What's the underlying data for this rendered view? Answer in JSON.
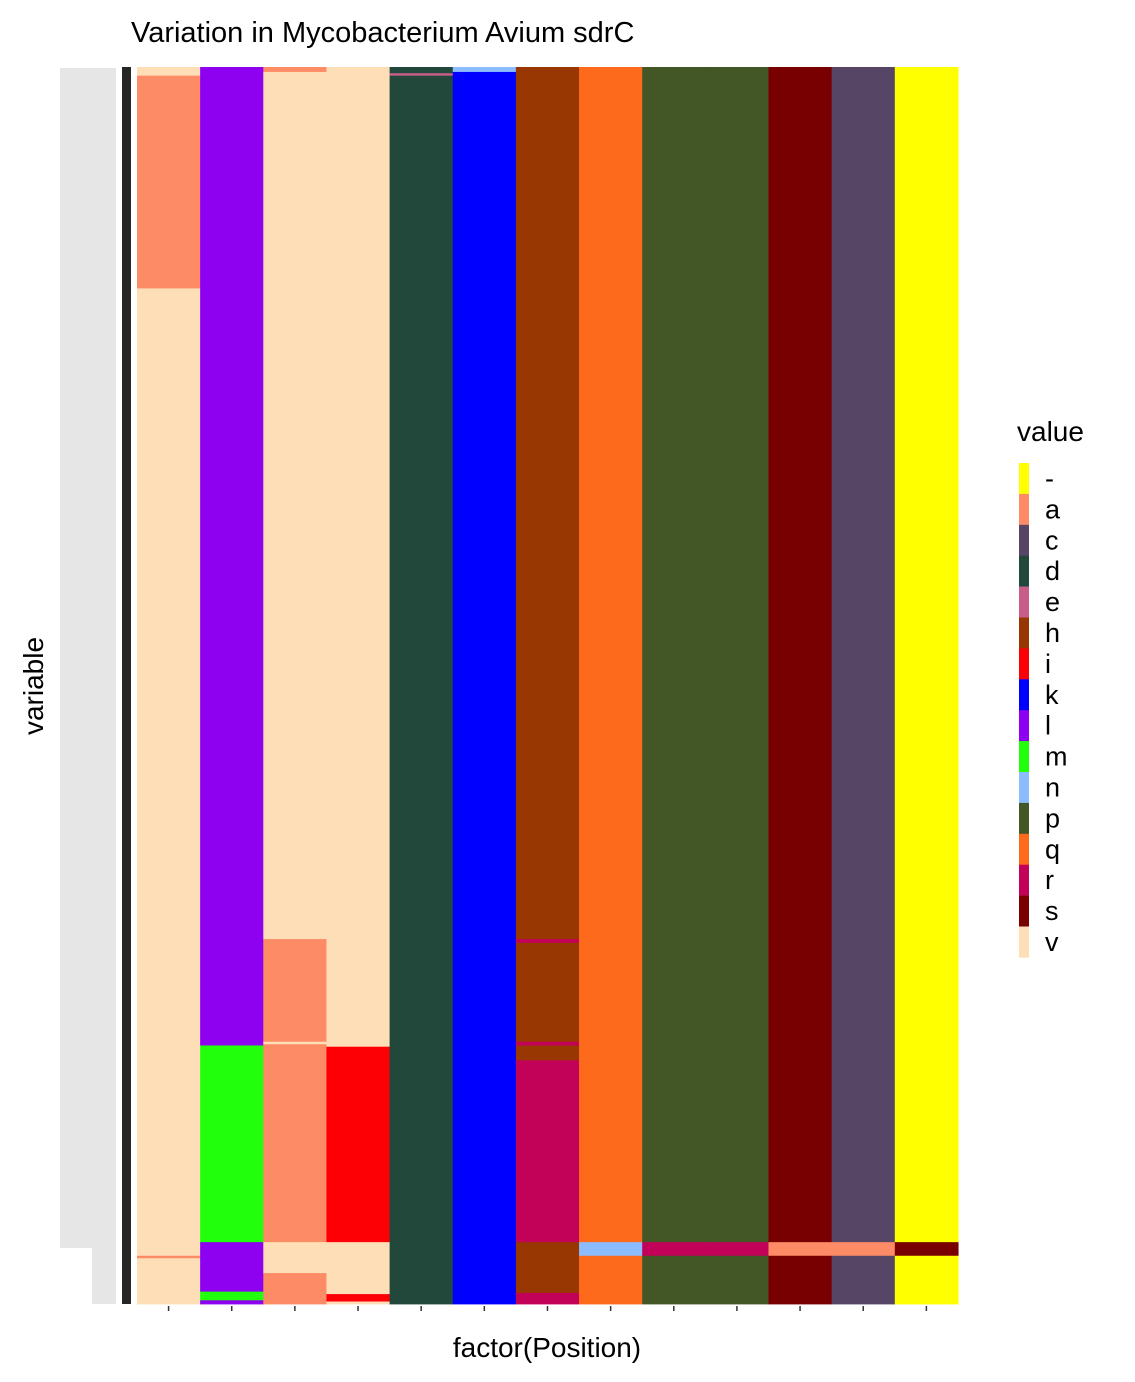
{
  "chart_data": {
    "type": "heatmap",
    "title": "Variation in Mycobacterium Avium sdrC",
    "xlabel": "factor(Position)",
    "ylabel": "variable",
    "legend": {
      "title": "value",
      "placement": "right",
      "entries": [
        {
          "label": "-",
          "color": "#ffff00"
        },
        {
          "label": "a",
          "color": "#fd8c66"
        },
        {
          "label": "c",
          "color": "#574565"
        },
        {
          "label": "d",
          "color": "#22483c"
        },
        {
          "label": "e",
          "color": "#c75d88"
        },
        {
          "label": "h",
          "color": "#983702"
        },
        {
          "label": "i",
          "color": "#fd0005"
        },
        {
          "label": "k",
          "color": "#0000ff"
        },
        {
          "label": "l",
          "color": "#8d00f0"
        },
        {
          "label": "m",
          "color": "#21ff0c"
        },
        {
          "label": "n",
          "color": "#8bbcff"
        },
        {
          "label": "p",
          "color": "#435625"
        },
        {
          "label": "q",
          "color": "#fe6a1c"
        },
        {
          "label": "r",
          "color": "#c20259"
        },
        {
          "label": "s",
          "color": "#790000"
        },
        {
          "label": "v",
          "color": "#fedeb7"
        }
      ]
    },
    "rows": 1000,
    "columns": 13,
    "blocks": [
      {
        "col": 0,
        "from": 0,
        "to": 7,
        "value": "v"
      },
      {
        "col": 0,
        "from": 7,
        "to": 179,
        "value": "a"
      },
      {
        "col": 0,
        "from": 179,
        "to": 961,
        "value": "v"
      },
      {
        "col": 0,
        "from": 961,
        "to": 963,
        "value": "a"
      },
      {
        "col": 0,
        "from": 963,
        "to": 1000,
        "value": "v"
      },
      {
        "col": 1,
        "from": 0,
        "to": 791,
        "value": "l"
      },
      {
        "col": 1,
        "from": 791,
        "to": 950,
        "value": "m"
      },
      {
        "col": 1,
        "from": 950,
        "to": 990,
        "value": "l"
      },
      {
        "col": 1,
        "from": 990,
        "to": 997,
        "value": "m"
      },
      {
        "col": 1,
        "from": 997,
        "to": 1000,
        "value": "l"
      },
      {
        "col": 2,
        "from": 0,
        "to": 4,
        "value": "a"
      },
      {
        "col": 2,
        "from": 4,
        "to": 705,
        "value": "v"
      },
      {
        "col": 2,
        "from": 705,
        "to": 788,
        "value": "a"
      },
      {
        "col": 2,
        "from": 788,
        "to": 790,
        "value": "v"
      },
      {
        "col": 2,
        "from": 790,
        "to": 950,
        "value": "a"
      },
      {
        "col": 2,
        "from": 950,
        "to": 975,
        "value": "v"
      },
      {
        "col": 2,
        "from": 975,
        "to": 1000,
        "value": "a"
      },
      {
        "col": 3,
        "from": 0,
        "to": 792,
        "value": "v"
      },
      {
        "col": 3,
        "from": 792,
        "to": 950,
        "value": "i"
      },
      {
        "col": 3,
        "from": 950,
        "to": 992,
        "value": "v"
      },
      {
        "col": 3,
        "from": 992,
        "to": 998,
        "value": "i"
      },
      {
        "col": 3,
        "from": 998,
        "to": 1000,
        "value": "v"
      },
      {
        "col": 4,
        "from": 0,
        "to": 5,
        "value": "d"
      },
      {
        "col": 4,
        "from": 5,
        "to": 7,
        "value": "e"
      },
      {
        "col": 4,
        "from": 7,
        "to": 1000,
        "value": "d"
      },
      {
        "col": 5,
        "from": 0,
        "to": 4,
        "value": "n"
      },
      {
        "col": 5,
        "from": 4,
        "to": 1000,
        "value": "k"
      },
      {
        "col": 6,
        "from": 0,
        "to": 705,
        "value": "h"
      },
      {
        "col": 6,
        "from": 705,
        "to": 708,
        "value": "r"
      },
      {
        "col": 6,
        "from": 708,
        "to": 788,
        "value": "h"
      },
      {
        "col": 6,
        "from": 788,
        "to": 791,
        "value": "r"
      },
      {
        "col": 6,
        "from": 791,
        "to": 803,
        "value": "h"
      },
      {
        "col": 6,
        "from": 803,
        "to": 950,
        "value": "r"
      },
      {
        "col": 6,
        "from": 950,
        "to": 991,
        "value": "h"
      },
      {
        "col": 6,
        "from": 991,
        "to": 1000,
        "value": "r"
      },
      {
        "col": 7,
        "from": 0,
        "to": 950,
        "value": "q"
      },
      {
        "col": 7,
        "from": 950,
        "to": 961,
        "value": "n"
      },
      {
        "col": 7,
        "from": 961,
        "to": 1000,
        "value": "q"
      },
      {
        "col": 8,
        "from": 0,
        "to": 950,
        "value": "p"
      },
      {
        "col": 8,
        "from": 950,
        "to": 961,
        "value": "r"
      },
      {
        "col": 8,
        "from": 961,
        "to": 1000,
        "value": "p"
      },
      {
        "col": 9,
        "from": 0,
        "to": 950,
        "value": "p"
      },
      {
        "col": 9,
        "from": 950,
        "to": 961,
        "value": "r"
      },
      {
        "col": 9,
        "from": 961,
        "to": 1000,
        "value": "p"
      },
      {
        "col": 10,
        "from": 0,
        "to": 950,
        "value": "s"
      },
      {
        "col": 10,
        "from": 950,
        "to": 961,
        "value": "a"
      },
      {
        "col": 10,
        "from": 961,
        "to": 1000,
        "value": "s"
      },
      {
        "col": 11,
        "from": 0,
        "to": 950,
        "value": "c"
      },
      {
        "col": 11,
        "from": 950,
        "to": 961,
        "value": "a"
      },
      {
        "col": 11,
        "from": 961,
        "to": 1000,
        "value": "c"
      },
      {
        "col": 12,
        "from": 0,
        "to": 950,
        "value": "-"
      },
      {
        "col": 12,
        "from": 950,
        "to": 961,
        "value": "s"
      },
      {
        "col": 12,
        "from": 961,
        "to": 1000,
        "value": "-"
      }
    ]
  }
}
